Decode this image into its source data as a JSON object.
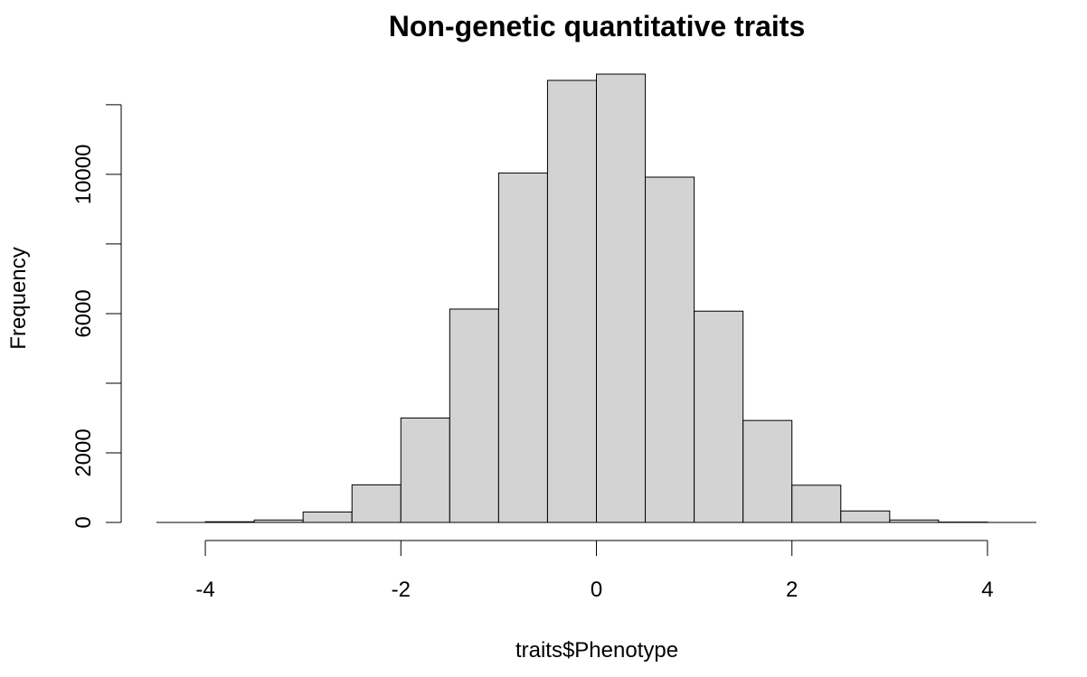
{
  "chart_data": {
    "type": "bar",
    "title": "Non-genetic quantitative traits",
    "xlabel": "traits$Phenotype",
    "ylabel": "Frequency",
    "bin_edges": [
      -4.0,
      -3.5,
      -3.0,
      -2.5,
      -2.0,
      -1.5,
      -1.0,
      -0.5,
      0.0,
      0.5,
      1.0,
      1.5,
      2.0,
      2.5,
      3.0,
      3.5,
      4.0
    ],
    "counts": [
      20,
      70,
      300,
      1080,
      3000,
      6130,
      10040,
      12700,
      12880,
      9920,
      6070,
      2930,
      1070,
      330,
      70,
      10
    ],
    "xlim": [
      -4.5,
      4.5
    ],
    "ylim": [
      0,
      12880
    ],
    "x_ticks": [
      -4,
      -2,
      0,
      2,
      4
    ],
    "x_tick_labels": [
      "-4",
      "-2",
      "0",
      "2",
      "4"
    ],
    "y_ticks": [
      0,
      2000,
      4000,
      6000,
      8000,
      10000,
      12000
    ],
    "y_tick_labels": [
      "0",
      "2000",
      "",
      "6000",
      "",
      "10000",
      ""
    ],
    "bar_fill": "#d3d3d3",
    "bar_stroke": "#000000",
    "grid": false,
    "legend": "none"
  }
}
